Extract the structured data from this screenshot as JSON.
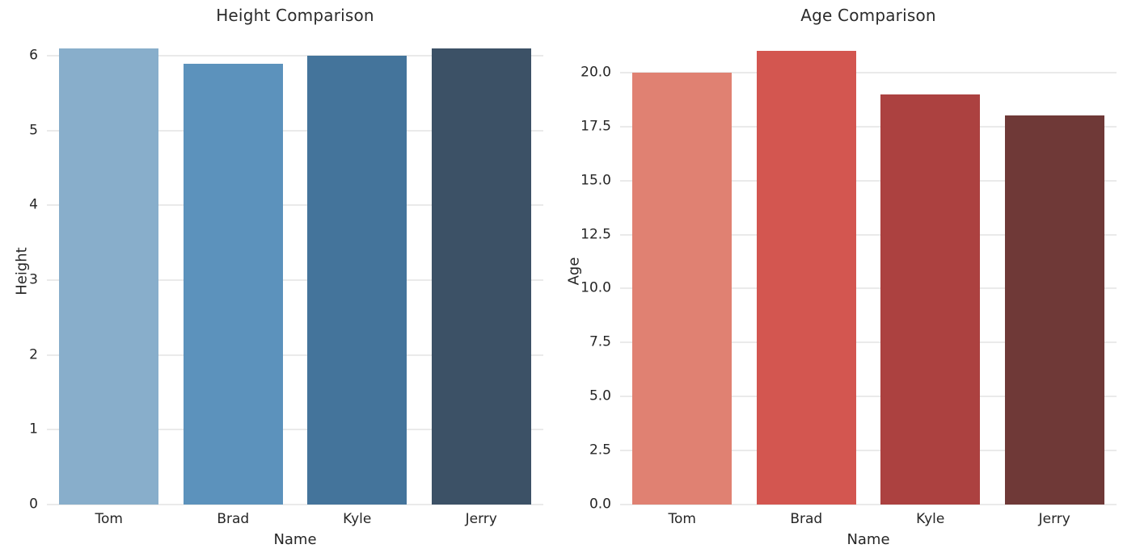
{
  "figure": {
    "background": "#ffffff",
    "text_color": "#262626",
    "grid_color": "#d6d6d6"
  },
  "chart_data": [
    {
      "type": "bar",
      "title": "Height Comparison",
      "xlabel": "Name",
      "ylabel": "Height",
      "categories": [
        "Tom",
        "Brad",
        "Kyle",
        "Jerry"
      ],
      "values": [
        6.1,
        5.9,
        6.0,
        6.1
      ],
      "bar_colors": [
        "#88AECB",
        "#5C92BC",
        "#44749B",
        "#3C5166"
      ],
      "yticks": [
        0,
        1,
        2,
        3,
        4,
        5,
        6
      ],
      "ytick_labels": [
        "0",
        "1",
        "2",
        "3",
        "4",
        "5",
        "6"
      ],
      "ylim": [
        0,
        6.24
      ],
      "grid": true,
      "legend": "none"
    },
    {
      "type": "bar",
      "title": "Age Comparison",
      "xlabel": "Name",
      "ylabel": "Age",
      "categories": [
        "Tom",
        "Brad",
        "Kyle",
        "Jerry"
      ],
      "values": [
        20,
        21,
        19,
        18
      ],
      "bar_colors": [
        "#E08172",
        "#D35650",
        "#AC4140",
        "#6F3937"
      ],
      "yticks": [
        0,
        2.5,
        5,
        7.5,
        10,
        12.5,
        15,
        17.5,
        20
      ],
      "ytick_labels": [
        "0.0",
        "2.5",
        "5.0",
        "7.5",
        "10.0",
        "12.5",
        "15.0",
        "17.5",
        "20.0"
      ],
      "ylim": [
        0,
        21.6
      ],
      "grid": true,
      "legend": "none"
    }
  ]
}
